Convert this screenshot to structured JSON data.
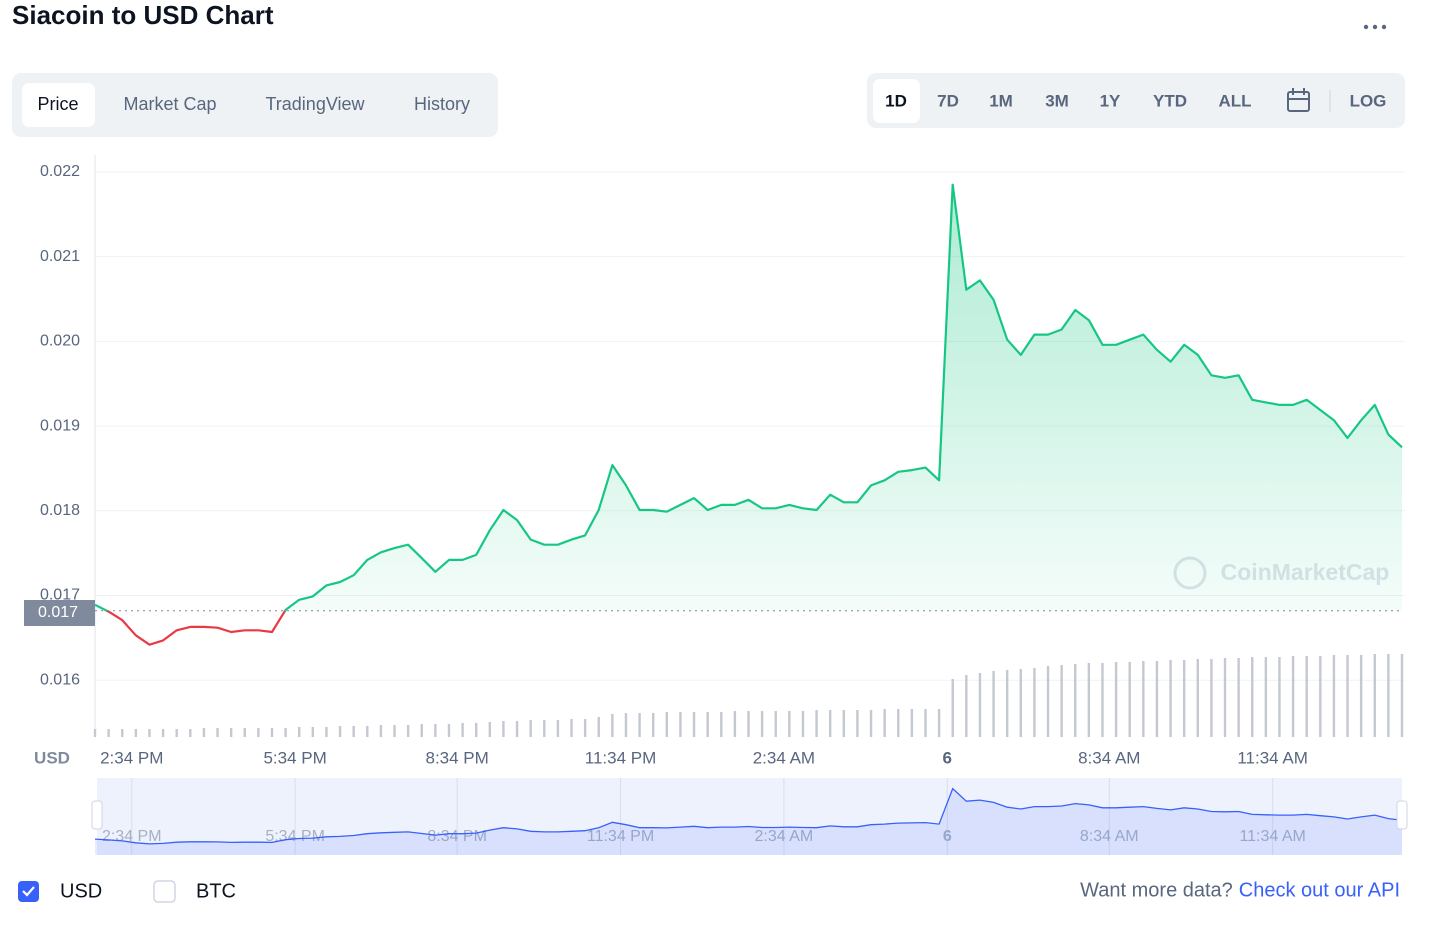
{
  "header": {
    "title": "Siacoin to USD Chart",
    "tabs": [
      "Price",
      "Market Cap",
      "TradingView",
      "History"
    ],
    "ranges": [
      "1D",
      "7D",
      "1M",
      "3M",
      "1Y",
      "YTD",
      "ALL"
    ],
    "log": "LOG"
  },
  "chart_data": {
    "type": "line",
    "y_label": "USD",
    "watermark": "CoinMarketCap",
    "up_color": "#16c784",
    "down_color": "#ea3943",
    "volume_color": "#c4c8d0",
    "navigator_color": "#3861fb",
    "xlim": [
      0,
      96
    ],
    "xticks": [
      {
        "value": 2.7,
        "label": "2:34 PM"
      },
      {
        "value": 14.7,
        "label": "5:34 PM"
      },
      {
        "value": 26.6,
        "label": "8:34 PM"
      },
      {
        "value": 38.6,
        "label": "11:34 PM"
      },
      {
        "value": 50.6,
        "label": "2:34 AM"
      },
      {
        "value": 62.6,
        "label": "6"
      },
      {
        "value": 74.5,
        "label": "8:34 AM"
      },
      {
        "value": 86.5,
        "label": "11:34 AM"
      }
    ],
    "ylim": [
      0.01533,
      0.0222
    ],
    "yticks": [
      0.016,
      0.017,
      0.018,
      0.019,
      {
        "value": 0.02,
        "label": "0.020"
      },
      0.021,
      0.022
    ],
    "grid": true,
    "reference": {
      "value": 0.01682,
      "label": "0.017"
    },
    "values": [
      0.01689,
      0.01681,
      0.01671,
      0.01653,
      0.01642,
      0.01647,
      0.01659,
      0.01663,
      0.01663,
      0.01662,
      0.01657,
      0.01659,
      0.01659,
      0.01657,
      0.01683,
      0.01695,
      0.01699,
      0.01712,
      0.01716,
      0.01724,
      0.01742,
      0.01751,
      0.01756,
      0.0176,
      0.01744,
      0.01728,
      0.01742,
      0.01742,
      0.01748,
      0.01777,
      0.01801,
      0.01789,
      0.01766,
      0.0176,
      0.0176,
      0.01766,
      0.01771,
      0.01801,
      0.01854,
      0.0183,
      0.01801,
      0.01801,
      0.01799,
      0.01807,
      0.01815,
      0.01801,
      0.01807,
      0.01807,
      0.01813,
      0.01803,
      0.01803,
      0.01807,
      0.01803,
      0.01801,
      0.01819,
      0.0181,
      0.0181,
      0.0183,
      0.01836,
      0.01846,
      0.01848,
      0.01851,
      0.01836,
      0.02185,
      0.02061,
      0.02072,
      0.02049,
      0.02002,
      0.01984,
      0.02008,
      0.02008,
      0.02014,
      0.02037,
      0.02025,
      0.01996,
      0.01996,
      0.02002,
      0.02008,
      0.0199,
      0.01976,
      0.01996,
      0.01984,
      0.0196,
      0.01957,
      0.0196,
      0.01931,
      0.01928,
      0.01925,
      0.01925,
      0.01931,
      0.01919,
      0.01907,
      0.01886,
      0.01907,
      0.01925,
      0.0189,
      0.01875
    ],
    "vlim": [
      0,
      100
    ],
    "volume": [
      8,
      8,
      8,
      8,
      8,
      8,
      8,
      8,
      9,
      9,
      9,
      9,
      9,
      9,
      9,
      10,
      10,
      10,
      11,
      11,
      11,
      12,
      12,
      12,
      13,
      13,
      13,
      14,
      14,
      15,
      16,
      16,
      17,
      17,
      17,
      18,
      18,
      20,
      23,
      24,
      24,
      24,
      25,
      25,
      25,
      25,
      25,
      26,
      26,
      26,
      26,
      26,
      26,
      27,
      27,
      27,
      27,
      27,
      28,
      28,
      28,
      28,
      28,
      58,
      62,
      64,
      66,
      67,
      68,
      69,
      71,
      72,
      73,
      74,
      74,
      75,
      75,
      76,
      76,
      77,
      77,
      78,
      78,
      79,
      79,
      80,
      80,
      80,
      81,
      81,
      81,
      82,
      82,
      82,
      83,
      83,
      83
    ]
  },
  "footer": {
    "currencies": [
      "USD",
      "BTC"
    ],
    "prompt": "Want more data?",
    "link": "Check out our API"
  }
}
